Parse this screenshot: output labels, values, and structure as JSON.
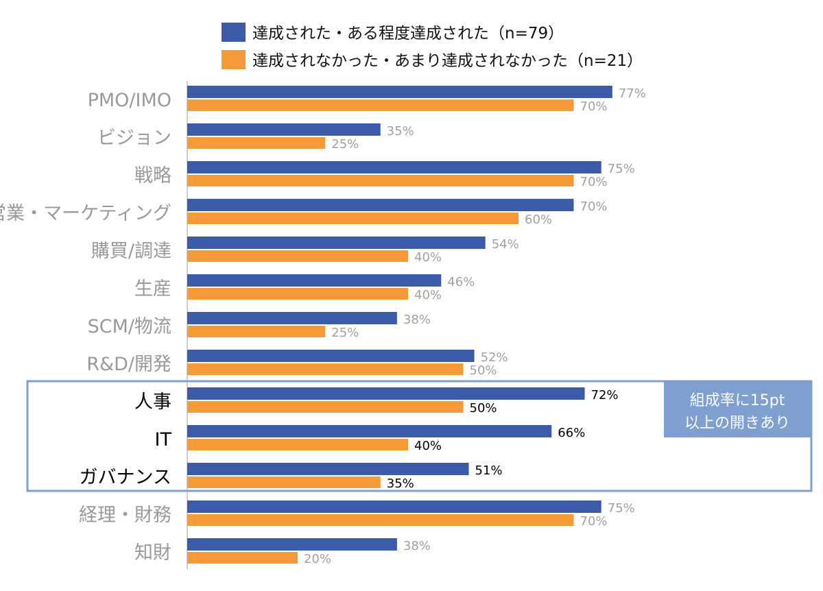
{
  "chart_data": {
    "type": "bar",
    "orientation": "horizontal",
    "categories": [
      "PMO/IMO",
      "ビジョン",
      "戦略",
      "営業・マーケティング",
      "購買/調達",
      "生産",
      "SCM/物流",
      "R&D/開発",
      "人事",
      "IT",
      "ガバナンス",
      "経理・財務",
      "知財"
    ],
    "series": [
      {
        "name": "達成された・ある程度達成された（n=79）",
        "color": "#3b5ba8",
        "values": [
          77,
          35,
          75,
          70,
          54,
          46,
          38,
          52,
          72,
          66,
          51,
          75,
          38
        ]
      },
      {
        "name": "達成されなかった・あまり達成されなかった（n=21）",
        "color": "#f59a36",
        "values": [
          70,
          25,
          70,
          60,
          40,
          40,
          25,
          50,
          50,
          40,
          35,
          70,
          20
        ]
      }
    ],
    "value_suffix": "%",
    "xlim": [
      0,
      100
    ],
    "legend_placement": "top",
    "grid": false,
    "highlighted_categories": [
      "人事",
      "IT",
      "ガバナンス"
    ],
    "highlight_color": "#7f9fd1",
    "annotation": {
      "line1": "組成率に15pt",
      "line2": "以上の開きあり"
    },
    "label_color": "#a0a0a0",
    "highlight_label_color": "#000000"
  }
}
